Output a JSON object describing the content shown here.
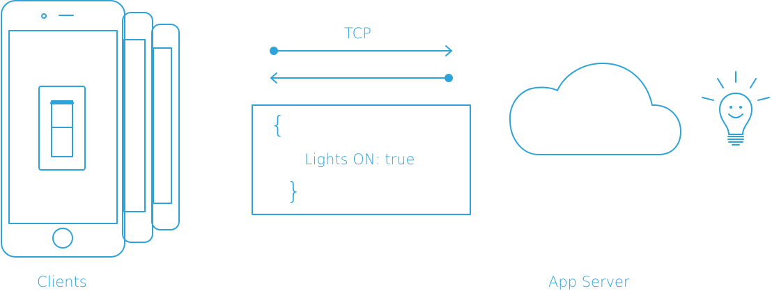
{
  "labels": {
    "clients": "Clients",
    "app_server": "App Server",
    "protocol": "TCP"
  },
  "message": {
    "open_brace": "{",
    "body": "Lights ON: true",
    "close_brace": "}"
  },
  "icons": [
    "smartphone-icon",
    "light-switch-icon",
    "arrow-right-icon",
    "arrow-left-icon",
    "cloud-icon",
    "lightbulb-icon"
  ],
  "colors": {
    "stroke": "#2ea3d8",
    "background": "#ffffff"
  }
}
